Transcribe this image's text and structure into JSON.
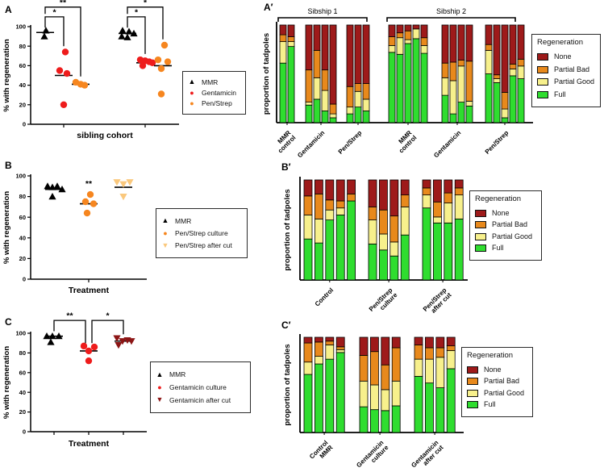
{
  "chart_data": [
    {
      "id": "A",
      "type": "scatter",
      "panel_label": "A",
      "ylabel": "% with regeneration",
      "xlabel": "sibling cohort",
      "ylim": [
        0,
        100
      ],
      "yticks": [
        0,
        20,
        40,
        60,
        80,
        100
      ],
      "groups": [
        {
          "treatment": "MMR",
          "cohort": 1,
          "marker": "triangle-up",
          "color": "#000000",
          "values": [
            96,
            90
          ],
          "mean": 94
        },
        {
          "treatment": "Gentamicin",
          "cohort": 1,
          "marker": "circle",
          "color": "#EE1C1C",
          "values": [
            74,
            55,
            52,
            20
          ],
          "mean": 50
        },
        {
          "treatment": "Pen/Strep",
          "cohort": 1,
          "marker": "circle",
          "color": "#F6861F",
          "values": [
            43,
            41,
            40
          ],
          "mean": 41
        },
        {
          "treatment": "MMR",
          "cohort": 2,
          "marker": "triangle-up",
          "color": "#000000",
          "values": [
            96,
            95,
            93,
            90,
            89
          ],
          "mean": 93
        },
        {
          "treatment": "Gentamicin",
          "cohort": 2,
          "marker": "circle",
          "color": "#EE1C1C",
          "values": [
            66,
            65,
            64,
            63,
            60
          ],
          "mean": 63
        },
        {
          "treatment": "Pen/Strep",
          "cohort": 2,
          "marker": "circle",
          "color": "#F6861F",
          "values": [
            81,
            66,
            64,
            57,
            31
          ],
          "mean": 60
        }
      ],
      "brackets": [
        {
          "g1": 0,
          "g2": 1,
          "label": "*",
          "y": 110,
          "d1": 99,
          "d2": 80
        },
        {
          "g1": 0,
          "g2": 2,
          "label": "**",
          "y": 120,
          "d1": 113,
          "d2": 49
        },
        {
          "g1": 3,
          "g2": 4,
          "label": "*",
          "y": 110,
          "d1": 99,
          "d2": 72
        },
        {
          "g1": 3,
          "g2": 5,
          "label": "*",
          "y": 120,
          "d1": 113,
          "d2": 87
        }
      ],
      "legend": {
        "items": [
          {
            "label": "MMR",
            "marker": "triangle-up",
            "color": "#000000"
          },
          {
            "label": "Gentamicin",
            "marker": "circle",
            "color": "#EE1C1C"
          },
          {
            "label": "Pen/Strep",
            "marker": "circle",
            "color": "#F6861F"
          }
        ]
      }
    },
    {
      "id": "B",
      "type": "scatter",
      "panel_label": "B",
      "ylabel": "% with regeneration",
      "xlabel": "Treatment",
      "ylim": [
        0,
        100
      ],
      "yticks": [
        0,
        20,
        40,
        60,
        80,
        100
      ],
      "groups": [
        {
          "treatment": "MMR",
          "marker": "triangle-up",
          "color": "#000000",
          "values": [
            90,
            89,
            90,
            87,
            80
          ],
          "mean": 87
        },
        {
          "treatment": "Pen/Strep culture",
          "marker": "circle",
          "color": "#F6861F",
          "values": [
            82,
            75,
            73,
            64
          ],
          "mean": 73
        },
        {
          "treatment": "Pen/Strep after cut",
          "marker": "triangle-down",
          "color": "#FAC87D",
          "values": [
            94,
            92,
            94,
            80
          ],
          "mean": 89
        }
      ],
      "sig_labels": [
        {
          "group": 1,
          "label": "**",
          "y": 90
        }
      ],
      "legend": {
        "items": [
          {
            "label": "MMR",
            "marker": "triangle-up",
            "color": "#000000"
          },
          {
            "label": "Pen/Strep culture",
            "marker": "circle",
            "color": "#F6861F"
          },
          {
            "label": "Pen/Strep after cut",
            "marker": "triangle-down",
            "color": "#FAC87D"
          }
        ]
      }
    },
    {
      "id": "C",
      "type": "scatter",
      "panel_label": "C",
      "ylabel": "% with regeneration",
      "xlabel": "Treatment",
      "ylim": [
        0,
        100
      ],
      "yticks": [
        0,
        20,
        40,
        60,
        80,
        100
      ],
      "groups": [
        {
          "treatment": "MMR",
          "marker": "triangle-up",
          "color": "#000000",
          "values": [
            97,
            97,
            97,
            91
          ],
          "mean": 97
        },
        {
          "treatment": "Gentamicin culture",
          "marker": "circle",
          "color": "#EE1C1C",
          "values": [
            87,
            82,
            86,
            72
          ],
          "mean": 82
        },
        {
          "treatment": "Gentamicin after cut",
          "marker": "triangle-down",
          "color": "#8C1515",
          "values": [
            95,
            92,
            88,
            93,
            92
          ],
          "mean": 92
        }
      ],
      "brackets": [
        {
          "g1": 0,
          "g2": 1,
          "label": "**",
          "y": 113,
          "d1": 102,
          "d2": 90,
          "o2": -4
        },
        {
          "g1": 1,
          "g2": 2,
          "label": "*",
          "y": 113,
          "d1": 90,
          "d2": 99,
          "o1": 4
        }
      ],
      "legend": {
        "items": [
          {
            "label": "MMR",
            "marker": "triangle-up",
            "color": "#000000"
          },
          {
            "label": "Gentamicin culture",
            "marker": "circle",
            "color": "#EE1C1C"
          },
          {
            "label": "Gentamicin after cut",
            "marker": "triangle-down",
            "color": "#8C1515"
          }
        ]
      }
    },
    {
      "id": "A2",
      "type": "stacked-bar",
      "panel_label": "A′",
      "ylabel": "proportion of tadpoles",
      "legend_title": "Regeneration",
      "stack": [
        {
          "name": "Full",
          "color": "#2FDD2F"
        },
        {
          "name": "Partial Good",
          "color": "#F7F08C"
        },
        {
          "name": "Partial Bad",
          "color": "#E8891C"
        },
        {
          "name": "None",
          "color": "#9E1A1A"
        }
      ],
      "sibships": [
        {
          "label": "Sibship 1",
          "groups": [
            {
              "label": [
                "MMR",
                "control"
              ],
              "bars": [
                [
                  0.61,
                  0.22,
                  0.07,
                  0.1
                ],
                [
                  0.78,
                  0.05,
                  0.05,
                  0.12
                ]
              ]
            },
            {
              "label": [
                "Gentamicin"
              ],
              "bars": [
                [
                  0.18,
                  0.03,
                  0.33,
                  0.46
                ],
                [
                  0.24,
                  0.22,
                  0.28,
                  0.26
                ],
                [
                  0.12,
                  0.21,
                  0.21,
                  0.46
                ],
                [
                  0.05,
                  0.04,
                  0.1,
                  0.81
                ]
              ]
            },
            {
              "label": [
                "Pen/Strep"
              ],
              "bars": [
                [
                  0.09,
                  0.07,
                  0.21,
                  0.63
                ],
                [
                  0.16,
                  0.16,
                  0.08,
                  0.6
                ],
                [
                  0.12,
                  0.12,
                  0.16,
                  0.6
                ]
              ]
            }
          ]
        },
        {
          "label": "Sibship 2",
          "groups": [
            {
              "label": [
                "MMR",
                "control"
              ],
              "bars": [
                [
                  0.72,
                  0.07,
                  0.09,
                  0.12
                ],
                [
                  0.7,
                  0.17,
                  0.05,
                  0.08
                ],
                [
                  0.81,
                  0.04,
                  0.09,
                  0.06
                ],
                [
                  0.86,
                  0.1,
                  0.0,
                  0.04
                ],
                [
                  0.71,
                  0.08,
                  0.08,
                  0.13
                ]
              ]
            },
            {
              "label": [
                "Gentamicin"
              ],
              "bars": [
                [
                  0.28,
                  0.18,
                  0.15,
                  0.39
                ],
                [
                  0.09,
                  0.34,
                  0.19,
                  0.38
                ],
                [
                  0.21,
                  0.37,
                  0.06,
                  0.36
                ],
                [
                  0.17,
                  0.05,
                  0.41,
                  0.37
                ]
              ]
            },
            {
              "label": [
                "Pen/Strep"
              ],
              "bars": [
                [
                  0.5,
                  0.24,
                  0.06,
                  0.2
                ],
                [
                  0.41,
                  0.04,
                  0.04,
                  0.51
                ],
                [
                  0.05,
                  0.09,
                  0.17,
                  0.69
                ],
                [
                  0.48,
                  0.07,
                  0.05,
                  0.4
                ],
                [
                  0.45,
                  0.13,
                  0.07,
                  0.35
                ]
              ]
            }
          ]
        }
      ]
    },
    {
      "id": "B2",
      "type": "stacked-bar",
      "panel_label": "B′",
      "ylabel": "proportion of tadpoles",
      "legend_title": "Regeneration",
      "stack": [
        {
          "name": "Full",
          "color": "#2FDD2F"
        },
        {
          "name": "Partial Good",
          "color": "#F7F08C"
        },
        {
          "name": "Partial Bad",
          "color": "#E8891C"
        },
        {
          "name": "None",
          "color": "#9E1A1A"
        }
      ],
      "sibships": [
        {
          "label": "",
          "groups": [
            {
              "label": [
                "Control"
              ],
              "bars": [
                [
                  0.41,
                  0.24,
                  0.19,
                  0.16
                ],
                [
                  0.37,
                  0.24,
                  0.25,
                  0.14
                ],
                [
                  0.6,
                  0.1,
                  0.1,
                  0.2
                ],
                [
                  0.65,
                  0.07,
                  0.07,
                  0.21
                ],
                [
                  0.79,
                  0.0,
                  0.07,
                  0.14
                ]
              ]
            },
            {
              "label": [
                "Pen/Strep",
                "culture"
              ],
              "bars": [
                [
                  0.36,
                  0.24,
                  0.13,
                  0.27
                ],
                [
                  0.3,
                  0.16,
                  0.24,
                  0.3
                ],
                [
                  0.24,
                  0.14,
                  0.26,
                  0.36
                ],
                [
                  0.45,
                  0.28,
                  0.12,
                  0.15
                ]
              ]
            },
            {
              "label": [
                "Pen/Strep",
                "after cut"
              ],
              "bars": [
                [
                  0.72,
                  0.13,
                  0.07,
                  0.08
                ],
                [
                  0.57,
                  0.06,
                  0.15,
                  0.22
                ],
                [
                  0.57,
                  0.2,
                  0.1,
                  0.13
                ],
                [
                  0.61,
                  0.24,
                  0.07,
                  0.08
                ]
              ]
            }
          ]
        }
      ]
    },
    {
      "id": "C2",
      "type": "stacked-bar",
      "panel_label": "C′",
      "ylabel": "proportion of tadpoles",
      "legend_title": "Regeneration",
      "stack": [
        {
          "name": "Full",
          "color": "#2FDD2F"
        },
        {
          "name": "Partial Good",
          "color": "#F7F08C"
        },
        {
          "name": "Partial Bad",
          "color": "#E8891C"
        },
        {
          "name": "None",
          "color": "#9E1A1A"
        }
      ],
      "sibships": [
        {
          "label": "",
          "groups": [
            {
              "label": [
                "Control",
                "MMR"
              ],
              "bars": [
                [
                  0.61,
                  0.13,
                  0.2,
                  0.06
                ],
                [
                  0.72,
                  0.08,
                  0.15,
                  0.05
                ],
                [
                  0.77,
                  0.15,
                  0.04,
                  0.04
                ],
                [
                  0.84,
                  0.03,
                  0.03,
                  0.1
                ]
              ]
            },
            {
              "label": [
                "Gentamicin",
                "culture"
              ],
              "bars": [
                [
                  0.27,
                  0.27,
                  0.27,
                  0.19
                ],
                [
                  0.24,
                  0.26,
                  0.35,
                  0.15
                ],
                [
                  0.23,
                  0.22,
                  0.26,
                  0.29
                ],
                [
                  0.28,
                  0.26,
                  0.35,
                  0.11
                ]
              ]
            },
            {
              "label": [
                "Gentamicin",
                "after cut"
              ],
              "bars": [
                [
                  0.59,
                  0.18,
                  0.15,
                  0.08
                ],
                [
                  0.52,
                  0.25,
                  0.12,
                  0.11
                ],
                [
                  0.47,
                  0.32,
                  0.1,
                  0.11
                ],
                [
                  0.67,
                  0.19,
                  0.05,
                  0.09
                ]
              ]
            }
          ]
        }
      ]
    }
  ]
}
